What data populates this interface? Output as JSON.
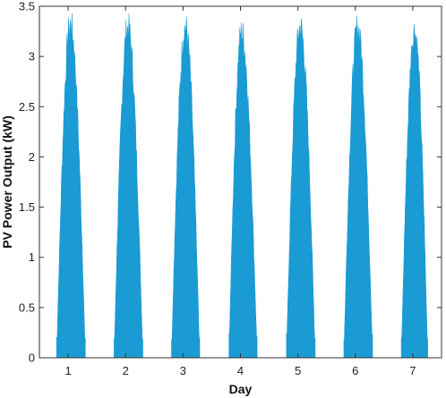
{
  "chart_data": {
    "type": "area",
    "title": "",
    "xlabel": "Day",
    "ylabel": "PV Power Output (kW)",
    "xlim": [
      0.5,
      7.5
    ],
    "ylim": [
      0,
      3.5
    ],
    "xticks": [
      1,
      2,
      3,
      4,
      5,
      6,
      7
    ],
    "yticks": [
      0,
      0.5,
      1,
      1.5,
      2,
      2.5,
      3,
      3.5
    ],
    "ytick_labels": [
      "0",
      "0.5",
      "1",
      "1.5",
      "2",
      "2.5",
      "3",
      "3.5"
    ],
    "grid": false,
    "legend": "none",
    "color": "#1a9bd3",
    "series": [
      {
        "days": [
          {
            "day": 1,
            "start": 0.8,
            "peak_time": 1.04,
            "end": 1.3,
            "peak": 3.48
          },
          {
            "day": 2,
            "start": 1.8,
            "peak_time": 2.04,
            "end": 2.3,
            "peak": 3.45
          },
          {
            "day": 3,
            "start": 2.8,
            "peak_time": 3.04,
            "end": 3.29,
            "peak": 3.46
          },
          {
            "day": 4,
            "start": 3.8,
            "peak_time": 4.02,
            "end": 4.29,
            "peak": 3.4
          },
          {
            "day": 5,
            "start": 4.8,
            "peak_time": 5.04,
            "end": 5.3,
            "peak": 3.46
          },
          {
            "day": 6,
            "start": 5.8,
            "peak_time": 6.04,
            "end": 6.3,
            "peak": 3.45
          },
          {
            "day": 7,
            "start": 6.8,
            "peak_time": 7.03,
            "end": 7.26,
            "peak": 3.42
          }
        ]
      }
    ]
  }
}
